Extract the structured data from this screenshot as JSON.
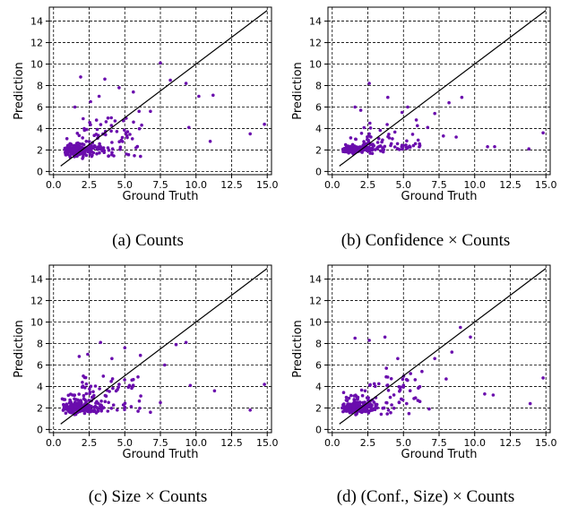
{
  "chart_data": [
    {
      "type": "scatter",
      "caption": "(a) Counts",
      "xlabel": "Ground Truth",
      "ylabel": "Prediction",
      "xlim": [
        -0.3,
        15.3
      ],
      "ylim": [
        -0.3,
        15.3
      ],
      "xticks": [
        "0.0",
        "2.5",
        "5.0",
        "7.5",
        "10.0",
        "12.5",
        "15.0"
      ],
      "yticks": [
        "0",
        "2",
        "4",
        "6",
        "8",
        "10",
        "12",
        "14"
      ],
      "grid": true,
      "point_color": "#6a0dad",
      "reference_line": {
        "from": [
          0.5,
          0.5
        ],
        "to": [
          15,
          15
        ]
      },
      "seed": 11,
      "outliers": [
        [
          7.5,
          10.1
        ],
        [
          8.2,
          8.5
        ],
        [
          9.3,
          8.2
        ],
        [
          3.6,
          8.6
        ],
        [
          1.9,
          8.8
        ],
        [
          10.2,
          7.0
        ],
        [
          11.2,
          7.1
        ],
        [
          11.0,
          2.8
        ],
        [
          13.8,
          3.5
        ],
        [
          14.8,
          4.4
        ],
        [
          9.5,
          4.1
        ],
        [
          6.0,
          5.6
        ],
        [
          4.6,
          7.8
        ],
        [
          5.6,
          7.4
        ],
        [
          2.6,
          6.5
        ],
        [
          1.5,
          6.0
        ],
        [
          3.2,
          7.0
        ],
        [
          5.2,
          3.7
        ],
        [
          6.8,
          5.6
        ]
      ]
    },
    {
      "type": "scatter",
      "caption": "(b) Confidence × Counts",
      "xlabel": "Ground Truth",
      "ylabel": "Prediction",
      "xlim": [
        -0.3,
        15.3
      ],
      "ylim": [
        -0.3,
        15.3
      ],
      "xticks": [
        "0.0",
        "2.5",
        "5.0",
        "7.5",
        "10.0",
        "12.5",
        "15.0"
      ],
      "yticks": [
        "0",
        "2",
        "4",
        "6",
        "8",
        "10",
        "12",
        "14"
      ],
      "grid": true,
      "point_color": "#6a0dad",
      "reference_line": {
        "from": [
          0.5,
          0.5
        ],
        "to": [
          15,
          15
        ]
      },
      "seed": 23,
      "outliers": [
        [
          2.6,
          8.2
        ],
        [
          1.6,
          6.0
        ],
        [
          2.0,
          5.7
        ],
        [
          3.9,
          6.9
        ],
        [
          4.9,
          5.5
        ],
        [
          5.3,
          6.0
        ],
        [
          7.2,
          5.4
        ],
        [
          8.2,
          6.4
        ],
        [
          9.1,
          6.9
        ],
        [
          7.8,
          3.3
        ],
        [
          8.7,
          3.2
        ],
        [
          10.9,
          2.3
        ],
        [
          11.4,
          2.3
        ],
        [
          13.8,
          2.1
        ],
        [
          14.8,
          3.6
        ],
        [
          3.2,
          2.7
        ],
        [
          2.6,
          3.5
        ],
        [
          5.9,
          4.8
        ],
        [
          6.7,
          4.1
        ]
      ]
    },
    {
      "type": "scatter",
      "caption": "(c) Size × Counts",
      "xlabel": "Ground Truth",
      "ylabel": "Prediction",
      "xlim": [
        -0.3,
        15.3
      ],
      "ylim": [
        -0.3,
        15.3
      ],
      "xticks": [
        "0.0",
        "2.5",
        "5.0",
        "7.5",
        "10.0",
        "12.5",
        "15.0"
      ],
      "yticks": [
        "0",
        "2",
        "4",
        "6",
        "8",
        "10",
        "12",
        "14"
      ],
      "grid": true,
      "point_color": "#6a0dad",
      "reference_line": {
        "from": [
          0.5,
          0.5
        ],
        "to": [
          15,
          15
        ]
      },
      "seed": 37,
      "outliers": [
        [
          3.3,
          8.1
        ],
        [
          5.0,
          7.6
        ],
        [
          8.6,
          7.9
        ],
        [
          9.3,
          8.1
        ],
        [
          2.4,
          7.0
        ],
        [
          1.8,
          6.8
        ],
        [
          4.1,
          6.6
        ],
        [
          6.1,
          6.9
        ],
        [
          7.8,
          6.0
        ],
        [
          9.6,
          4.1
        ],
        [
          11.3,
          3.6
        ],
        [
          13.8,
          1.8
        ],
        [
          14.8,
          4.2
        ],
        [
          6.8,
          1.6
        ],
        [
          7.5,
          2.5
        ],
        [
          5.5,
          4.6
        ],
        [
          4.6,
          4.2
        ]
      ]
    },
    {
      "type": "scatter",
      "caption": "(d) (Conf., Size) × Counts",
      "xlabel": "Ground Truth",
      "ylabel": "Prediction",
      "xlim": [
        -0.3,
        15.3
      ],
      "ylim": [
        -0.3,
        15.3
      ],
      "xticks": [
        "0.0",
        "2.5",
        "5.0",
        "7.5",
        "10.0",
        "12.5",
        "15.0"
      ],
      "yticks": [
        "0",
        "2",
        "4",
        "6",
        "8",
        "10",
        "12",
        "14"
      ],
      "grid": true,
      "point_color": "#6a0dad",
      "reference_line": {
        "from": [
          0.5,
          0.5
        ],
        "to": [
          15,
          15
        ]
      },
      "seed": 53,
      "outliers": [
        [
          1.6,
          8.5
        ],
        [
          2.6,
          8.3
        ],
        [
          3.7,
          8.6
        ],
        [
          9.0,
          9.5
        ],
        [
          9.7,
          8.6
        ],
        [
          8.4,
          7.2
        ],
        [
          7.2,
          6.6
        ],
        [
          4.6,
          6.6
        ],
        [
          6.3,
          5.4
        ],
        [
          10.7,
          3.3
        ],
        [
          11.3,
          3.2
        ],
        [
          13.9,
          2.4
        ],
        [
          14.8,
          4.8
        ],
        [
          3.8,
          5.7
        ],
        [
          5.5,
          5.2
        ],
        [
          8.0,
          4.7
        ],
        [
          6.8,
          1.9
        ]
      ]
    }
  ]
}
